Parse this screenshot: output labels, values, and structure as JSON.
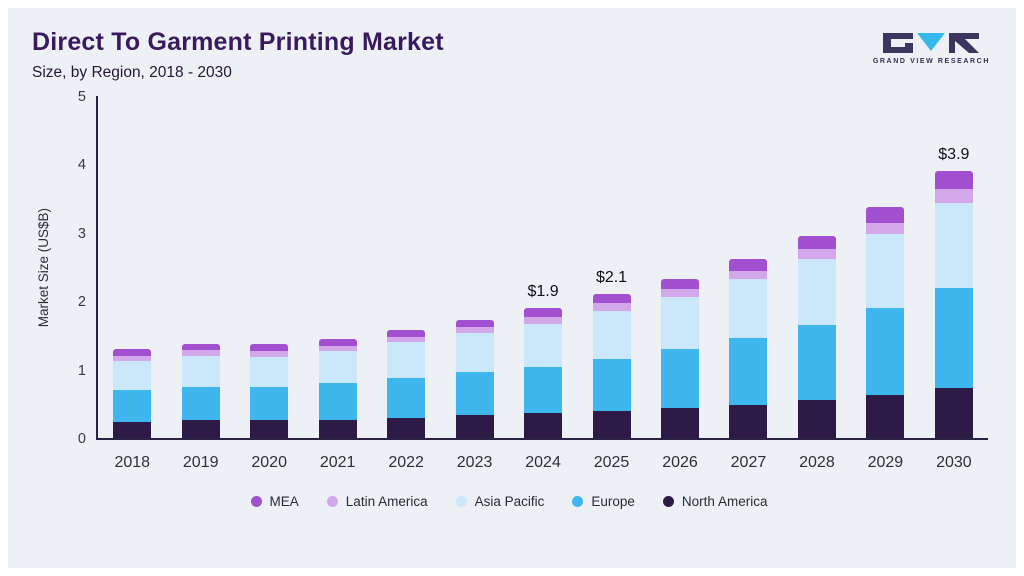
{
  "header": {
    "logo_text": "GRAND VIEW RESEARCH"
  },
  "chart_data": {
    "type": "bar",
    "stacked": true,
    "title": "Direct To Garment Printing Market",
    "subtitle": "Size, by Region, 2018 - 2030",
    "xlabel": "",
    "ylabel": "Market Size (US$B)",
    "ylim": [
      0,
      5
    ],
    "y_ticks": [
      0,
      1,
      2,
      3,
      4,
      5
    ],
    "grid": false,
    "legend_position": "bottom",
    "categories": [
      "2018",
      "2019",
      "2020",
      "2021",
      "2022",
      "2023",
      "2024",
      "2025",
      "2026",
      "2027",
      "2028",
      "2029",
      "2030"
    ],
    "series": [
      {
        "name": "North America",
        "color": "#2e1a47",
        "values": [
          0.24,
          0.26,
          0.26,
          0.27,
          0.3,
          0.33,
          0.36,
          0.4,
          0.44,
          0.49,
          0.56,
          0.63,
          0.73
        ]
      },
      {
        "name": "Europe",
        "color": "#3fb6ed",
        "values": [
          0.46,
          0.48,
          0.48,
          0.53,
          0.58,
          0.64,
          0.68,
          0.76,
          0.86,
          0.97,
          1.1,
          1.27,
          1.47
        ]
      },
      {
        "name": "Asia Pacific",
        "color": "#cbe8fa",
        "values": [
          0.42,
          0.46,
          0.45,
          0.47,
          0.52,
          0.57,
          0.63,
          0.7,
          0.76,
          0.86,
          0.96,
          1.08,
          1.24
        ]
      },
      {
        "name": "Latin America",
        "color": "#d2a8ea",
        "values": [
          0.08,
          0.08,
          0.08,
          0.08,
          0.08,
          0.08,
          0.1,
          0.11,
          0.12,
          0.13,
          0.15,
          0.17,
          0.2
        ]
      },
      {
        "name": "MEA",
        "color": "#a24fd0",
        "values": [
          0.1,
          0.1,
          0.1,
          0.1,
          0.1,
          0.1,
          0.13,
          0.13,
          0.15,
          0.17,
          0.19,
          0.23,
          0.26
        ]
      }
    ],
    "legend_order": [
      "MEA",
      "Latin America",
      "Asia Pacific",
      "Europe",
      "North America"
    ],
    "annotations": [
      {
        "category": "2024",
        "text": "$1.9"
      },
      {
        "category": "2025",
        "text": "$2.1"
      },
      {
        "category": "2030",
        "text": "$3.9"
      }
    ]
  }
}
